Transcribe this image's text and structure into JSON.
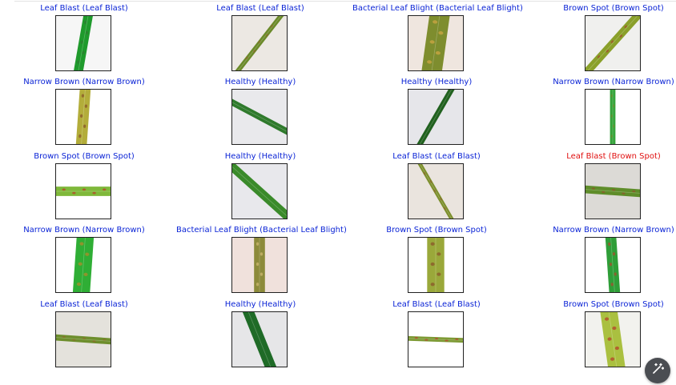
{
  "grid": {
    "rows": 5,
    "cols": 4,
    "cells": [
      {
        "title": "Leaf Blast (Leaf Blast)",
        "correct": true,
        "bg": "#f6f6f6",
        "leaf": "#1f9a2c",
        "angle": 10,
        "width": 12,
        "spots": "#2e7d32"
      },
      {
        "title": "Leaf Blast (Leaf Blast)",
        "correct": true,
        "bg": "#ece8e3",
        "leaf": "#6b8a2a",
        "angle": 38,
        "width": 6,
        "spots": "#8b6a2a"
      },
      {
        "title": "Bacterial Leaf Blight (Bacterial Leaf Blight)",
        "correct": true,
        "bg": "#efe6df",
        "leaf": "#7e8d2e",
        "angle": 8,
        "width": 26,
        "spots": "#c9a542"
      },
      {
        "title": "Brown Spot (Brown Spot)",
        "correct": true,
        "bg": "#f0f0ee",
        "leaf": "#8aa02a",
        "angle": 42,
        "width": 10,
        "spots": "#a0522d"
      },
      {
        "title": "Narrow Brown (Narrow Brown)",
        "correct": true,
        "bg": "#ffffff",
        "leaf": "#b3ad3a",
        "angle": 4,
        "width": 14,
        "spots": "#8b5a2b"
      },
      {
        "title": "Healthy (Healthy)",
        "correct": true,
        "bg": "#e9e9ec",
        "leaf": "#2f7a2c",
        "angle": -62,
        "width": 8,
        "spots": "#2f7a2c"
      },
      {
        "title": "Healthy (Healthy)",
        "correct": true,
        "bg": "#e6e6ea",
        "leaf": "#21611f",
        "angle": 30,
        "width": 7,
        "spots": "#21611f"
      },
      {
        "title": "Narrow Brown (Narrow Brown)",
        "correct": true,
        "bg": "#ffffff",
        "leaf": "#34a43a",
        "angle": 0,
        "width": 7,
        "spots": "#6b8a2a"
      },
      {
        "title": "Brown Spot (Brown Spot)",
        "correct": true,
        "bg": "#ffffff",
        "leaf": "#7fb83a",
        "angle": 90,
        "width": 12,
        "spots": "#b5482b"
      },
      {
        "title": "Healthy (Healthy)",
        "correct": true,
        "bg": "#e8e8ec",
        "leaf": "#3a8a2a",
        "angle": -48,
        "width": 11,
        "spots": "#3a8a2a"
      },
      {
        "title": "Leaf Blast (Leaf Blast)",
        "correct": true,
        "bg": "#eae4de",
        "leaf": "#7c8f2c",
        "angle": -30,
        "width": 5,
        "spots": "#8b6a2a"
      },
      {
        "title": "Leaf Blast (Brown Spot)",
        "correct": false,
        "bg": "#dcdad6",
        "leaf": "#5f8d2a",
        "angle": 94,
        "width": 10,
        "spots": "#8b5a2b"
      },
      {
        "title": "Narrow Brown (Narrow Brown)",
        "correct": true,
        "bg": "#ffffff",
        "leaf": "#2fae35",
        "angle": 4,
        "width": 22,
        "spots": "#a68d2c"
      },
      {
        "title": "Bacterial Leaf Blight (Bacterial Leaf Blight)",
        "correct": true,
        "bg": "#f0e1dc",
        "leaf": "#8c8a3a",
        "angle": 0,
        "width": 14,
        "spots": "#c9b46b"
      },
      {
        "title": "Brown Spot (Brown Spot)",
        "correct": true,
        "bg": "#ffffff",
        "leaf": "#9aa83a",
        "angle": 0,
        "width": 22,
        "spots": "#8b5a2b"
      },
      {
        "title": "Narrow Brown (Narrow Brown)",
        "correct": true,
        "bg": "#ffffff",
        "leaf": "#2f9e38",
        "angle": -4,
        "width": 14,
        "spots": "#a0522d"
      },
      {
        "title": "Leaf Blast (Leaf Blast)",
        "correct": true,
        "bg": "#e4e2dc",
        "leaf": "#6d8e2c",
        "angle": 94,
        "width": 8,
        "spots": "#8b6a2a"
      },
      {
        "title": "Healthy (Healthy)",
        "correct": true,
        "bg": "#e6e6e8",
        "leaf": "#1f6b27",
        "angle": -22,
        "width": 14,
        "spots": "#1f6b27"
      },
      {
        "title": "Leaf Blast (Leaf Blast)",
        "correct": true,
        "bg": "#ffffff",
        "leaf": "#7d9a34",
        "angle": 92,
        "width": 6,
        "spots": "#b5482b"
      },
      {
        "title": "Brown Spot (Brown Spot)",
        "correct": true,
        "bg": "#f2f2ee",
        "leaf": "#aac040",
        "angle": -8,
        "width": 22,
        "spots": "#b5482b"
      }
    ]
  },
  "colors": {
    "correct_title": "#0b24d6",
    "wrong_title": "#e01010"
  },
  "fab": {
    "icon": "magic-wand-icon"
  }
}
